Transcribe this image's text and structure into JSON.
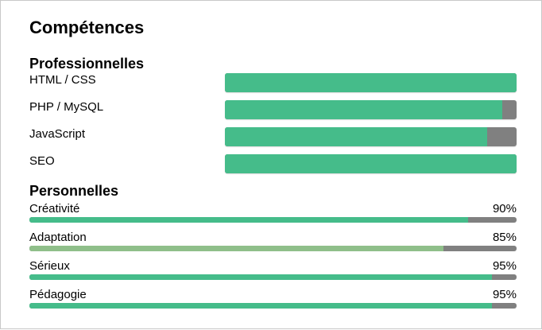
{
  "title": "Compétences",
  "professional": {
    "heading": "Professionnelles",
    "skills": [
      {
        "label": "HTML / CSS",
        "level": 100,
        "color": "#45bc8a"
      },
      {
        "label": "PHP / MySQL",
        "level": 95,
        "color": "#45bc8a"
      },
      {
        "label": "JavaScript",
        "level": 90,
        "color": "#45bc8a"
      },
      {
        "label": "SEO",
        "level": 100,
        "color": "#45bc8a"
      }
    ]
  },
  "personal": {
    "heading": "Personnelles",
    "skills": [
      {
        "label": "Créativité",
        "percent_text": "90%",
        "level": 90,
        "color": "#45bc8a"
      },
      {
        "label": "Adaptation",
        "percent_text": "85%",
        "level": 85,
        "color": "#8fbf8a"
      },
      {
        "label": "Sérieux",
        "percent_text": "95%",
        "level": 95,
        "color": "#45bc8a"
      },
      {
        "label": "Pédagogie",
        "percent_text": "95%",
        "level": 95,
        "color": "#45bc8a"
      }
    ]
  }
}
